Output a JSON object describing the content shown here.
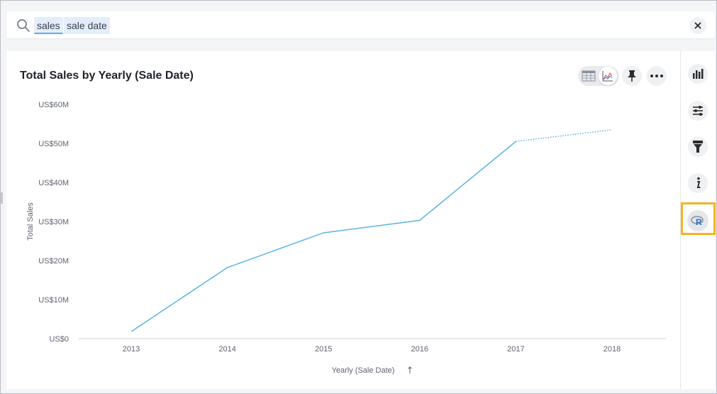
{
  "search": {
    "tokens": [
      "sales",
      "sale date"
    ]
  },
  "chart_title": "Total Sales by Yearly (Sale Date)",
  "toolbar": {
    "view_icons": [
      "table-view-icon",
      "chart-view-icon"
    ],
    "pin_icon": "pin-icon",
    "more_icon": "more-icon"
  },
  "sidebar": {
    "items": [
      "chart-config-icon",
      "settings-sliders-icon",
      "filter-icon",
      "info-icon",
      "r-analysis-icon"
    ]
  },
  "colors": {
    "line": "#5ab4e5",
    "highlight": "#f5b324",
    "r_logo": "#2b6cc4"
  },
  "chart_data": {
    "type": "line",
    "title": "Total Sales by Yearly (Sale Date)",
    "xlabel": "Yearly (Sale Date)",
    "ylabel": "Total Sales",
    "categories": [
      "2013",
      "2014",
      "2015",
      "2016",
      "2017",
      "2018"
    ],
    "series": [
      {
        "values": [
          1.8,
          18.2,
          27.1,
          30.3,
          50.5,
          53.5
        ]
      }
    ],
    "projected_from_index": 4,
    "ylim": [
      0,
      60
    ],
    "yticks": [
      0,
      10,
      20,
      30,
      40,
      50,
      60
    ],
    "ytick_labels": [
      "US$0",
      "US$10M",
      "US$20M",
      "US$30M",
      "US$40M",
      "US$50M",
      "US$60M"
    ],
    "grid": false,
    "sort_indicator": "↑"
  }
}
